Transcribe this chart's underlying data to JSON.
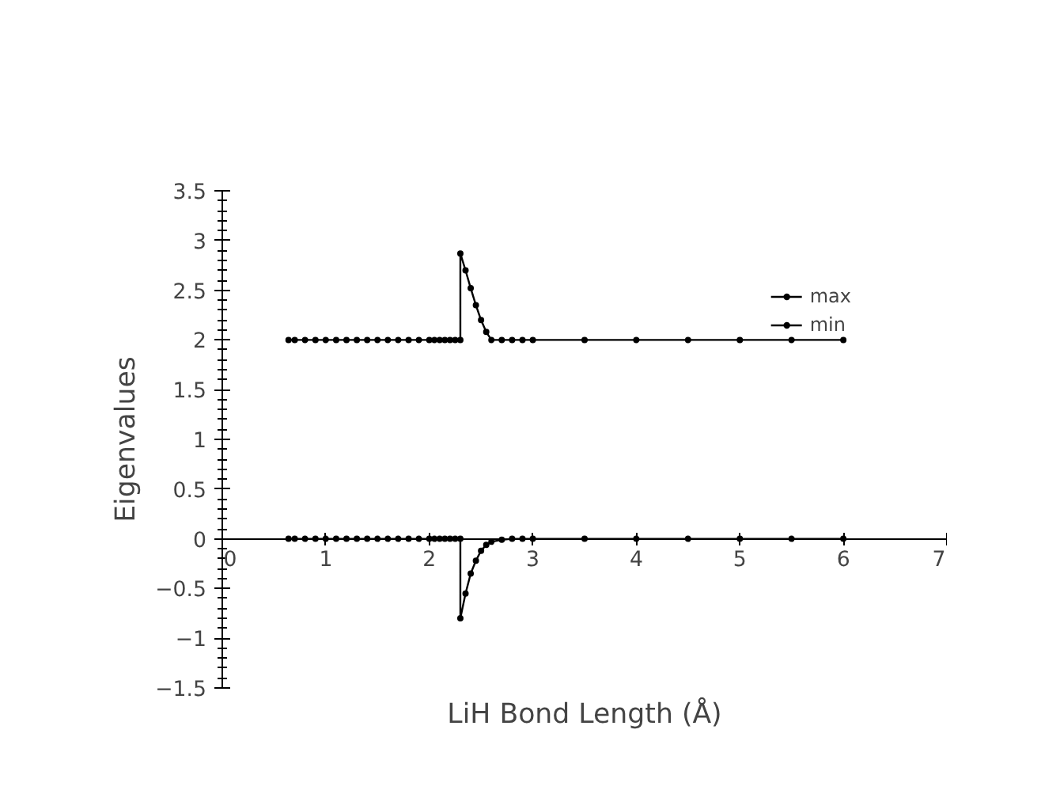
{
  "chart_data": {
    "type": "line",
    "xlabel": "LiH Bond Length (Å)",
    "ylabel": "Eigenvalues",
    "xlim": [
      0,
      7
    ],
    "ylim": [
      -1.5,
      3.5
    ],
    "xticks": [
      0,
      1,
      2,
      3,
      4,
      5,
      6,
      7
    ],
    "yticks": [
      -1.5,
      -1,
      -0.5,
      0,
      0.5,
      1,
      1.5,
      2,
      2.5,
      3,
      3.5
    ],
    "marker": "circle",
    "line_style": "solid",
    "grid": false,
    "legend": "top right",
    "series": [
      {
        "name": "max",
        "color": "#000000",
        "x": [
          0.64,
          0.7,
          0.8,
          0.9,
          1.0,
          1.1,
          1.2,
          1.3,
          1.4,
          1.5,
          1.6,
          1.7,
          1.8,
          1.9,
          2.0,
          2.05,
          2.1,
          2.15,
          2.2,
          2.25,
          2.3,
          2.3,
          2.35,
          2.4,
          2.45,
          2.5,
          2.55,
          2.6,
          2.7,
          2.8,
          2.9,
          3.0,
          3.5,
          4.0,
          4.5,
          5.0,
          5.5,
          6.0
        ],
        "values": [
          2,
          2,
          2,
          2,
          2,
          2,
          2,
          2,
          2,
          2,
          2,
          2,
          2,
          2,
          2,
          2,
          2,
          2,
          2,
          2,
          2,
          2.87,
          2.7,
          2.52,
          2.35,
          2.2,
          2.08,
          2,
          2,
          2,
          2,
          2,
          2,
          2,
          2,
          2,
          2,
          2
        ]
      },
      {
        "name": "min",
        "color": "#000000",
        "x": [
          0.64,
          0.7,
          0.8,
          0.9,
          1.0,
          1.1,
          1.2,
          1.3,
          1.4,
          1.5,
          1.6,
          1.7,
          1.8,
          1.9,
          2.0,
          2.05,
          2.1,
          2.15,
          2.2,
          2.25,
          2.3,
          2.3,
          2.35,
          2.4,
          2.45,
          2.5,
          2.55,
          2.6,
          2.7,
          2.8,
          2.9,
          3.0,
          3.5,
          4.0,
          4.5,
          5.0,
          5.5,
          6.0
        ],
        "values": [
          0,
          0,
          0,
          0,
          0,
          0,
          0,
          0,
          0,
          0,
          0,
          0,
          0,
          0,
          0,
          0,
          0,
          0,
          0,
          0,
          0,
          -0.8,
          -0.55,
          -0.35,
          -0.22,
          -0.12,
          -0.06,
          -0.03,
          -0.01,
          0,
          0,
          0,
          0,
          0,
          0,
          0,
          0,
          0
        ]
      }
    ]
  }
}
